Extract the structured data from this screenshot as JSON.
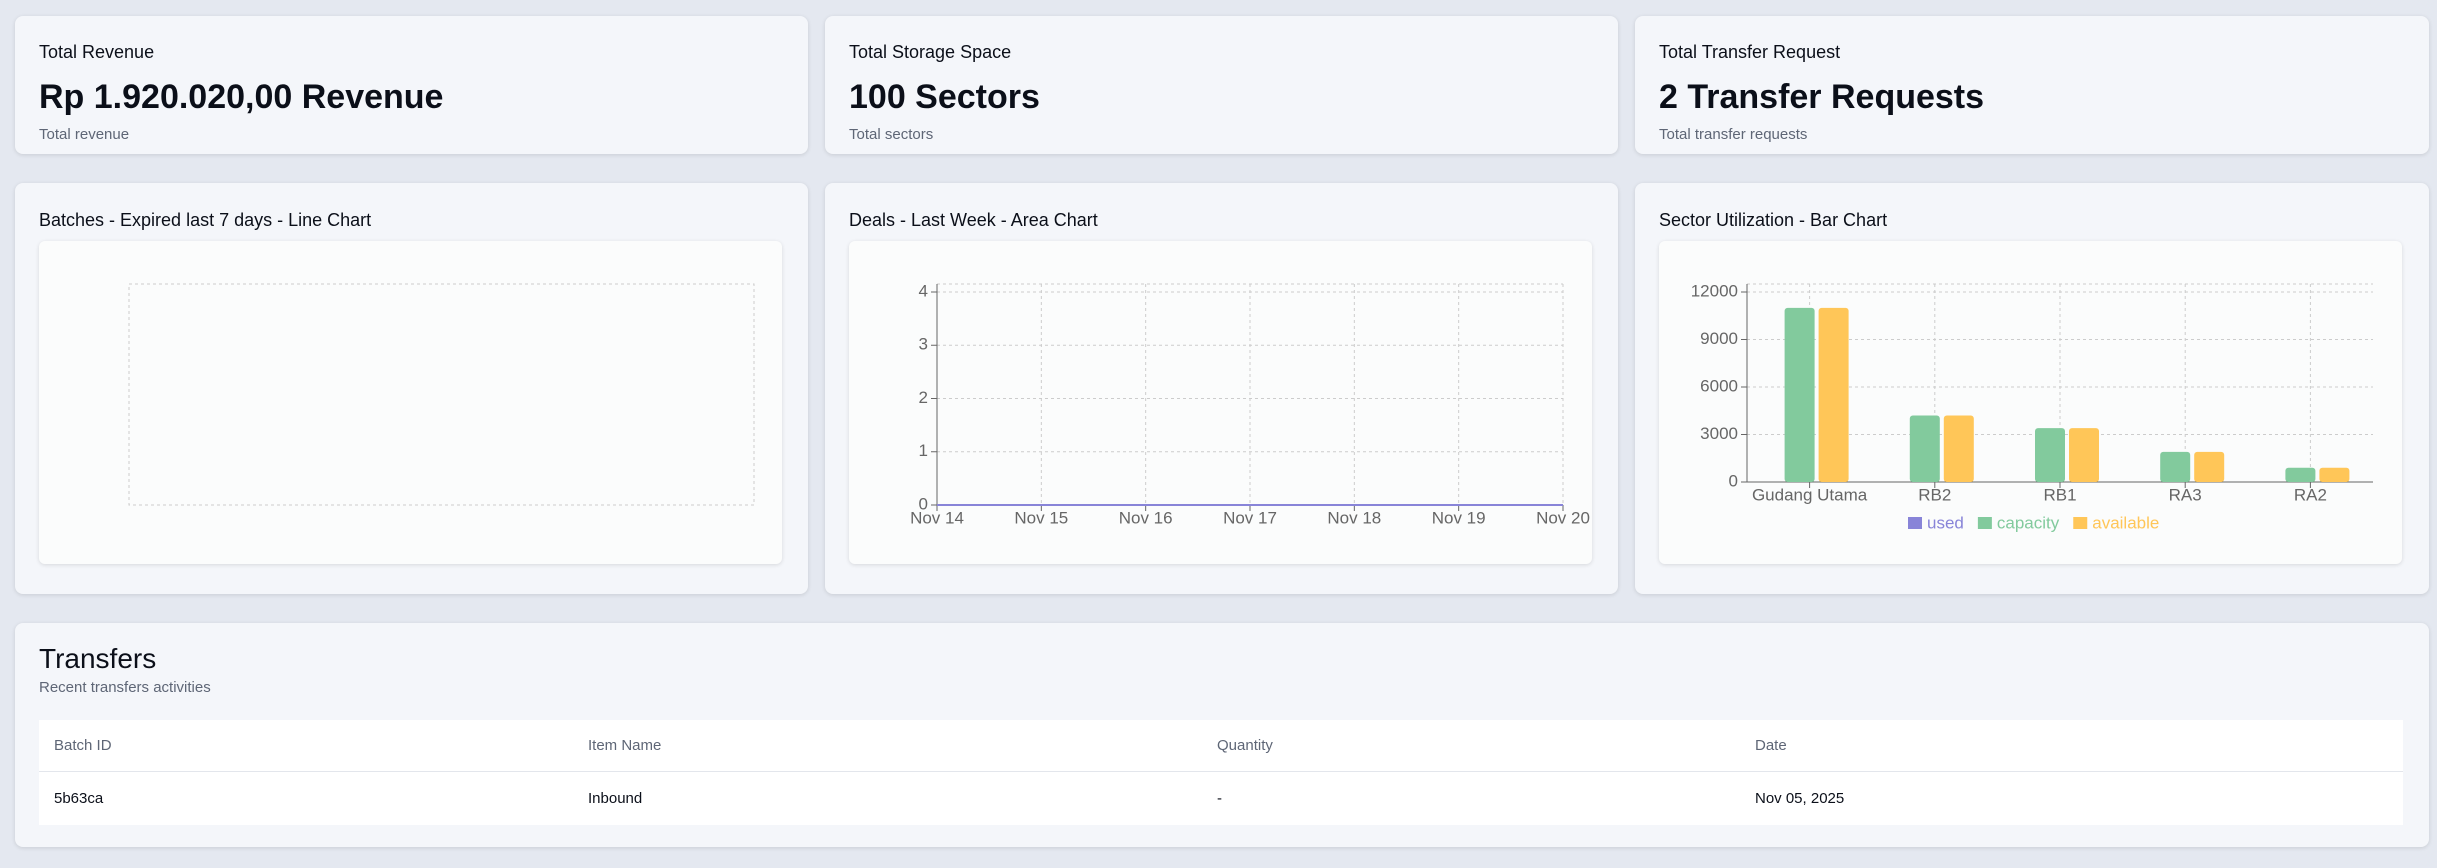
{
  "cards": [
    {
      "title": "Total Revenue",
      "value": "Rp 1.920.020,00 Revenue",
      "description": "Total revenue"
    },
    {
      "title": "Total Storage Space",
      "value": "100 Sectors",
      "description": "Total sectors"
    },
    {
      "title": "Total Transfer Request",
      "value": "2 Transfer Requests",
      "description": "Total transfer requests"
    }
  ],
  "chart_data": [
    {
      "type": "line",
      "title": "Batches - Expired last 7 days - Line Chart",
      "grid": true
    },
    {
      "type": "area",
      "title": "Deals - Last Week - Area Chart",
      "categories": [
        "Nov 14",
        "Nov 15",
        "Nov 16",
        "Nov 17",
        "Nov 18",
        "Nov 19",
        "Nov 20"
      ],
      "series": [
        {
          "color": "#8884d8",
          "values": [
            0,
            0,
            0,
            0,
            0,
            0,
            0
          ]
        }
      ],
      "ylim": [
        0,
        4
      ],
      "yticks": [
        0,
        1,
        2,
        3,
        4
      ],
      "grid": true
    },
    {
      "type": "bar",
      "title": "Sector Utilization - Bar Chart",
      "categories": [
        "Gudang Utama",
        "RB2",
        "RB1",
        "RA3",
        "RA2"
      ],
      "series": [
        {
          "name": "used",
          "color": "#8884d8",
          "values": [
            0,
            0,
            0,
            0,
            0
          ]
        },
        {
          "name": "capacity",
          "color": "#82ca9d",
          "values": [
            11000,
            4200,
            3400,
            1900,
            900
          ]
        },
        {
          "name": "available",
          "color": "#ffc658",
          "values": [
            11000,
            4200,
            3400,
            1900,
            900
          ]
        }
      ],
      "ylim": [
        0,
        12000
      ],
      "yticks": [
        0,
        3000,
        6000,
        9000,
        12000
      ],
      "grid": true,
      "legend": "bottom"
    }
  ],
  "transfers": {
    "title": "Transfers",
    "subtitle": "Recent transfers activities",
    "table": {
      "columns": [
        "Batch ID",
        "Item Name",
        "Quantity",
        "Date"
      ],
      "rows": [
        [
          "5b63ca",
          "Inbound",
          "-",
          "Nov 05, 2025"
        ]
      ]
    }
  }
}
